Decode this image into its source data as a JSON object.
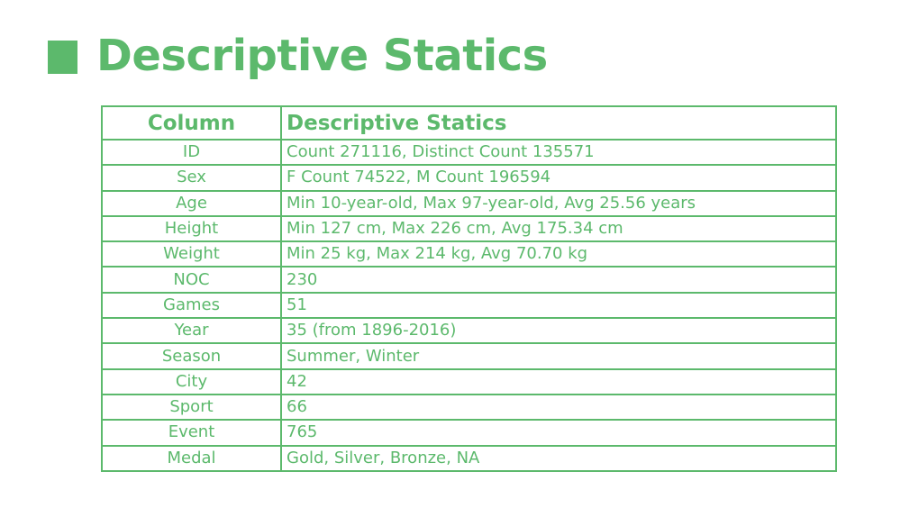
{
  "title": "Descriptive Statics",
  "table": {
    "headers": [
      "Column",
      "Descriptive Statics"
    ],
    "rows": [
      {
        "column": "ID",
        "stats": "Count 271116, Distinct Count 135571"
      },
      {
        "column": "Sex",
        "stats": "F Count 74522, M Count 196594"
      },
      {
        "column": "Age",
        "stats": "Min 10-year-old, Max 97-year-old, Avg 25.56 years"
      },
      {
        "column": "Height",
        "stats": "Min 127 cm, Max 226 cm, Avg 175.34 cm"
      },
      {
        "column": "Weight",
        "stats": "Min 25 kg, Max 214 kg, Avg 70.70 kg"
      },
      {
        "column": "NOC",
        "stats": "230"
      },
      {
        "column": "Games",
        "stats": "51"
      },
      {
        "column": "Year",
        "stats": "35 (from 1896-2016)"
      },
      {
        "column": "Season",
        "stats": "Summer, Winter"
      },
      {
        "column": "City",
        "stats": "42"
      },
      {
        "column": "Sport",
        "stats": "66"
      },
      {
        "column": "Event",
        "stats": "765"
      },
      {
        "column": "Medal",
        "stats": "Gold, Silver, Bronze, NA"
      }
    ]
  },
  "colors": {
    "accent": "#5cb96c",
    "background": "#ffffff"
  }
}
